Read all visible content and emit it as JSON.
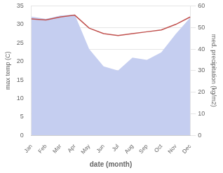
{
  "chart_data": {
    "type": "line",
    "categories": [
      "Jan",
      "Feb",
      "Mar",
      "Apr",
      "May",
      "Jun",
      "Jul",
      "Aug",
      "Sep",
      "Oct",
      "Nov",
      "Dec"
    ],
    "series": [
      {
        "type": "area",
        "color": "#c5cef0",
        "axis": "y2",
        "values": [
          55.0,
          54.0,
          55.5,
          56.0,
          40.0,
          32.0,
          30.0,
          36.0,
          35.0,
          38.5,
          47.0,
          54.5
        ]
      },
      {
        "type": "line",
        "color": "#c0504d",
        "values": [
          31.5,
          31.2,
          32.0,
          32.5,
          29.0,
          27.5,
          27.0,
          27.5,
          28.0,
          28.5,
          30.0,
          32.0
        ]
      }
    ],
    "xlabel": "date (month)",
    "ylabel": "max temp (C)",
    "y2label": "med. precipitation (kg/m2)",
    "ylim": [
      0,
      35
    ],
    "yticks": [
      0,
      5,
      10,
      15,
      20,
      25,
      30,
      35
    ],
    "y2lim": [
      0,
      60
    ],
    "y2ticks": [
      0,
      10,
      20,
      30,
      40,
      50,
      60
    ],
    "grid": true
  }
}
